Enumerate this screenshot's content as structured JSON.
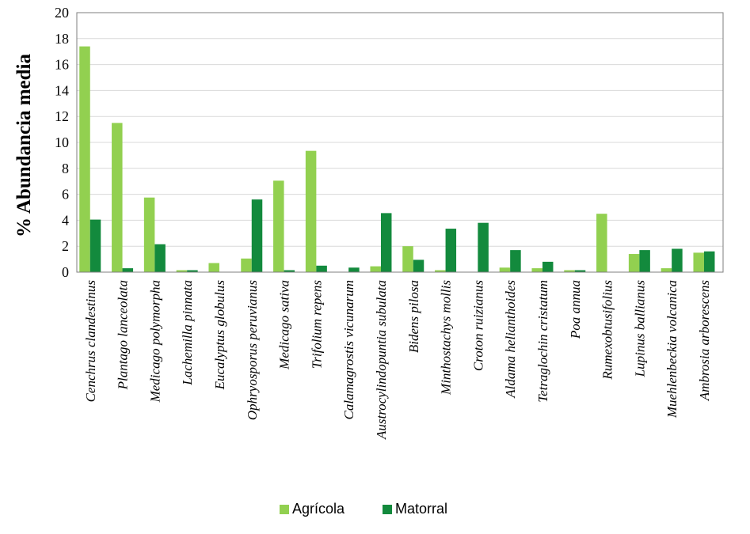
{
  "chart_data": {
    "type": "bar",
    "title": "",
    "xlabel": "",
    "ylabel": "% Abundancia media",
    "ylim": [
      0,
      20
    ],
    "yticks": [
      0,
      2,
      4,
      6,
      8,
      10,
      12,
      14,
      16,
      18,
      20
    ],
    "grid": true,
    "legend_position": "bottom",
    "categories": [
      "Cenchrus clandestinus",
      "Plantago lanceolata",
      "Medicago polymorpha",
      "Lachemilla pinnata",
      "Eucalyptus globulus",
      "Ophryosporus peruvianus",
      "Medicago sativa",
      "Trifolium repens",
      "Calamagrostis vicunarum",
      "Austrocylindopuntia subulata",
      "Bidens pilosa",
      "Minthostachys mollis",
      "Croton ruizianus",
      "Aldama helianthoides",
      "Tetraglochin cristatum",
      "Poa annua",
      "Rumexobtusifolius",
      "Lupinus ballianus",
      "Muehlenbeckia volcanica",
      "Ambrosia arborescens"
    ],
    "series": [
      {
        "name": "Agrícola",
        "color": "#92d050",
        "values": [
          17.4,
          11.5,
          5.75,
          0.15,
          0.7,
          1.05,
          7.05,
          9.35,
          0.0,
          0.45,
          2.0,
          0.15,
          0.0,
          0.35,
          0.3,
          0.15,
          4.5,
          1.4,
          0.3,
          1.5
        ]
      },
      {
        "name": "Matorral",
        "color": "#138a3d",
        "values": [
          4.05,
          0.3,
          2.15,
          0.15,
          0.0,
          5.6,
          0.15,
          0.5,
          0.35,
          4.55,
          0.95,
          3.35,
          3.8,
          1.7,
          0.8,
          0.15,
          0.0,
          1.7,
          1.8,
          1.6
        ]
      }
    ]
  }
}
